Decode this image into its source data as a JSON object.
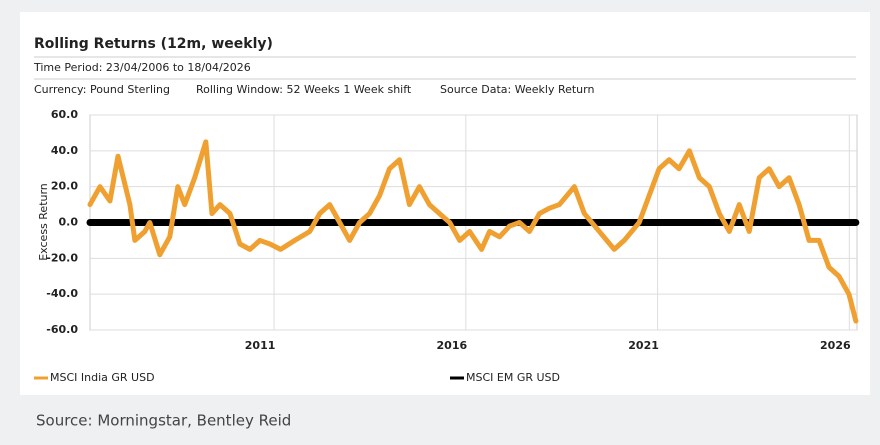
{
  "chart_data": {
    "type": "line",
    "title": "Rolling Returns (12m, weekly)",
    "subtitle": "Time Period: 23/04/2006 to 18/04/2026",
    "info": [
      "Currency: Pound Sterling",
      "Rolling Window: 52 Weeks 1 Week shift",
      "Source Data: Weekly Return"
    ],
    "y_label": "Excess Return",
    "source": "Source: Morningstar, Bentley Reid",
    "x": [
      2006.2,
      2006.46,
      2006.72,
      2006.93,
      2007.24,
      2007.37,
      2007.63,
      2007.76,
      2008.02,
      2008.28,
      2008.49,
      2008.67,
      2008.93,
      2009.22,
      2009.38,
      2009.59,
      2009.85,
      2010.11,
      2010.37,
      2010.63,
      2010.89,
      2011.17,
      2011.54,
      2011.93,
      2012.19,
      2012.45,
      2012.71,
      2012.97,
      2013.23,
      2013.49,
      2013.75,
      2014.01,
      2014.27,
      2014.53,
      2014.79,
      2015.05,
      2015.31,
      2015.58,
      2015.84,
      2016.1,
      2016.41,
      2016.62,
      2016.88,
      2017.14,
      2017.4,
      2017.66,
      2017.92,
      2018.18,
      2018.44,
      2018.83,
      2019.09,
      2019.48,
      2019.87,
      2020.13,
      2020.52,
      2020.78,
      2021.04,
      2021.3,
      2021.56,
      2021.83,
      2022.09,
      2022.35,
      2022.61,
      2022.87,
      2023.13,
      2023.39,
      2023.65,
      2023.91,
      2024.17,
      2024.43,
      2024.69,
      2024.95,
      2025.21,
      2025.47,
      2025.73,
      2025.99,
      2026.17
    ],
    "series": [
      {
        "name": "MSCI India GR USD",
        "color": "#f0a030",
        "values": [
          10,
          20,
          12,
          37,
          10,
          -10,
          -5,
          0,
          -18,
          -8,
          20,
          10,
          25,
          45,
          5,
          10,
          5,
          -12,
          -15,
          -10,
          -12,
          -15,
          -10,
          -5,
          5,
          10,
          0,
          -10,
          0,
          5,
          15,
          30,
          35,
          10,
          20,
          10,
          5,
          0,
          -10,
          -5,
          -15,
          -5,
          -8,
          -2,
          0,
          -5,
          5,
          8,
          10,
          20,
          5,
          -5,
          -15,
          -10,
          0,
          15,
          30,
          35,
          30,
          40,
          25,
          20,
          5,
          -5,
          10,
          -5,
          25,
          30,
          20,
          25,
          10,
          -10,
          -10,
          -25,
          -30,
          -40,
          -55
        ]
      },
      {
        "name": "MSCI EM GR USD",
        "color": "#000000",
        "values": [
          0,
          0,
          0,
          0,
          0,
          0,
          0,
          0,
          0,
          0,
          0,
          0,
          0,
          0,
          0,
          0,
          0,
          0,
          0,
          0,
          0,
          0,
          0,
          0,
          0,
          0,
          0,
          0,
          0,
          0,
          0,
          0,
          0,
          0,
          0,
          0,
          0,
          0,
          0,
          0,
          0,
          0,
          0,
          0,
          0,
          0,
          0,
          0,
          0,
          0,
          0,
          0,
          0,
          0,
          0,
          0,
          0,
          0,
          0,
          0,
          0,
          0,
          0,
          0,
          0,
          0,
          0,
          0,
          0,
          0,
          0,
          0,
          0,
          0,
          0,
          0,
          0
        ]
      }
    ],
    "xlim": [
      2006.2,
      2026.2
    ],
    "xticks": [
      2011,
      2016,
      2021,
      2026
    ],
    "ylim": [
      -60,
      60
    ],
    "yticks": [
      {
        "value": -60,
        "label": "-60.0"
      },
      {
        "value": -40,
        "label": "-40.0"
      },
      {
        "value": -20,
        "label": "-20.0"
      },
      {
        "value": 0,
        "label": "0.0"
      },
      {
        "value": 20,
        "label": "20.0"
      },
      {
        "value": 40,
        "label": "40.0"
      },
      {
        "value": 60,
        "label": "60.0"
      }
    ],
    "grid": true
  }
}
